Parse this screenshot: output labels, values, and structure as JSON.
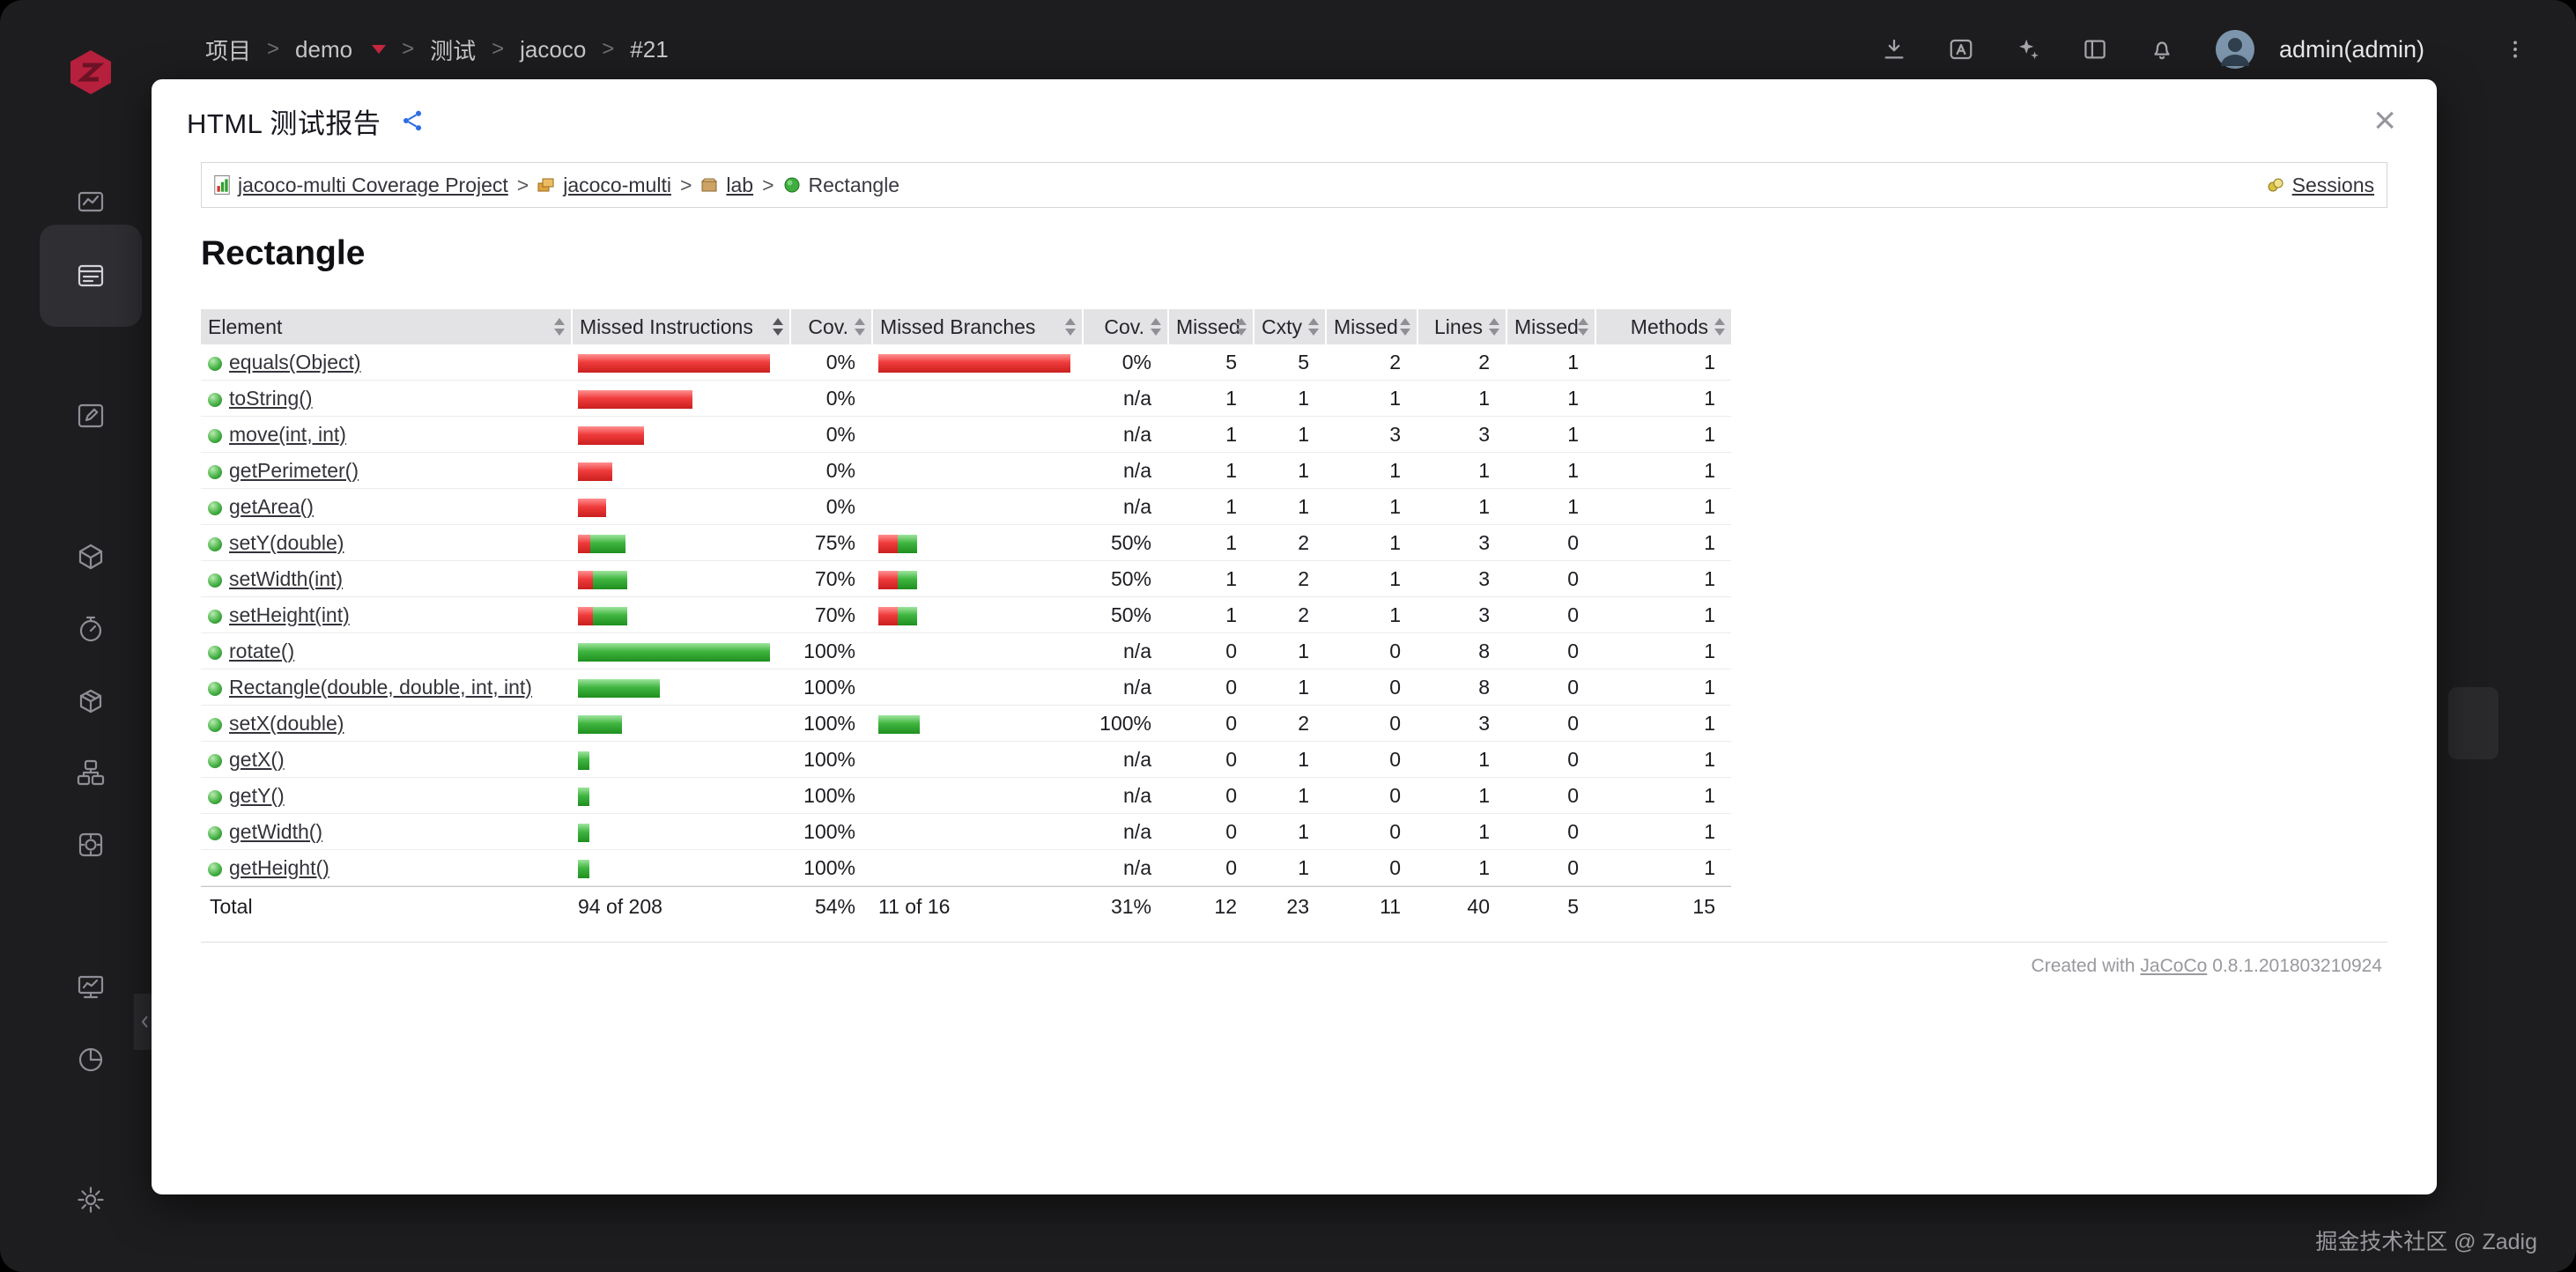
{
  "topbar": {
    "breadcrumb": [
      "项目",
      "demo",
      "测试",
      "jacoco",
      "#21"
    ],
    "separator": ">",
    "user": "admin(admin)",
    "icon_names": [
      "download-icon",
      "language-icon",
      "sparkles-icon",
      "layout-icon",
      "notification-icon",
      "avatar",
      "more-icon"
    ]
  },
  "sidebar": {
    "logo": "zadig-logo",
    "items": [
      {
        "name": "dashboard",
        "active": false
      },
      {
        "name": "projects",
        "active": true
      },
      {
        "name": "compose",
        "active": false
      },
      {
        "name": "builds",
        "active": false
      },
      {
        "name": "tests",
        "active": false
      },
      {
        "name": "delivery",
        "active": false
      },
      {
        "name": "environments",
        "active": false
      },
      {
        "name": "plugins",
        "active": false
      },
      {
        "name": "monitor",
        "active": false
      },
      {
        "name": "insights",
        "active": false
      },
      {
        "name": "settings",
        "active": false
      }
    ]
  },
  "modal": {
    "title": "HTML 测试报告",
    "close_label": "×"
  },
  "report": {
    "breadcrumb": {
      "separator": ">",
      "items": [
        {
          "label": "jacoco-multi Coverage Project",
          "icon": "report-icon"
        },
        {
          "label": "jacoco-multi",
          "icon": "group-icon"
        },
        {
          "label": "lab",
          "icon": "package-icon"
        },
        {
          "label": "Rectangle",
          "icon": "class-icon"
        }
      ],
      "sessions_label": "Sessions"
    },
    "heading": "Rectangle",
    "table": {
      "columns": [
        "Element",
        "Missed Instructions",
        "Cov.",
        "Missed Branches",
        "Cov.",
        "Missed",
        "Cxty",
        "Missed",
        "Lines",
        "Missed",
        "Methods"
      ],
      "rows": [
        {
          "name": "equals(Object)",
          "instr": [
            218,
            0
          ],
          "instr_cov": "0%",
          "branch": [
            218,
            0
          ],
          "branch_cov": "0%",
          "nums": [
            "5",
            "5",
            "2",
            "2",
            "1",
            "1"
          ]
        },
        {
          "name": "toString()",
          "instr": [
            130,
            0
          ],
          "instr_cov": "0%",
          "branch": [
            0,
            0
          ],
          "branch_cov": "n/a",
          "nums": [
            "1",
            "1",
            "1",
            "1",
            "1",
            "1"
          ]
        },
        {
          "name": "move(int, int)",
          "instr": [
            75,
            0
          ],
          "instr_cov": "0%",
          "branch": [
            0,
            0
          ],
          "branch_cov": "n/a",
          "nums": [
            "1",
            "1",
            "3",
            "3",
            "1",
            "1"
          ]
        },
        {
          "name": "getPerimeter()",
          "instr": [
            39,
            0
          ],
          "instr_cov": "0%",
          "branch": [
            0,
            0
          ],
          "branch_cov": "n/a",
          "nums": [
            "1",
            "1",
            "1",
            "1",
            "1",
            "1"
          ]
        },
        {
          "name": "getArea()",
          "instr": [
            32,
            0
          ],
          "instr_cov": "0%",
          "branch": [
            0,
            0
          ],
          "branch_cov": "n/a",
          "nums": [
            "1",
            "1",
            "1",
            "1",
            "1",
            "1"
          ]
        },
        {
          "name": "setY(double)",
          "instr": [
            14,
            40
          ],
          "instr_cov": "75%",
          "branch": [
            22,
            22
          ],
          "branch_cov": "50%",
          "nums": [
            "1",
            "2",
            "1",
            "3",
            "0",
            "1"
          ]
        },
        {
          "name": "setWidth(int)",
          "instr": [
            17,
            39
          ],
          "instr_cov": "70%",
          "branch": [
            22,
            22
          ],
          "branch_cov": "50%",
          "nums": [
            "1",
            "2",
            "1",
            "3",
            "0",
            "1"
          ]
        },
        {
          "name": "setHeight(int)",
          "instr": [
            17,
            39
          ],
          "instr_cov": "70%",
          "branch": [
            22,
            22
          ],
          "branch_cov": "50%",
          "nums": [
            "1",
            "2",
            "1",
            "3",
            "0",
            "1"
          ]
        },
        {
          "name": "rotate()",
          "instr": [
            0,
            218
          ],
          "instr_cov": "100%",
          "branch": [
            0,
            0
          ],
          "branch_cov": "n/a",
          "nums": [
            "0",
            "1",
            "0",
            "8",
            "0",
            "1"
          ]
        },
        {
          "name": "Rectangle(double, double, int, int)",
          "instr": [
            0,
            93
          ],
          "instr_cov": "100%",
          "branch": [
            0,
            0
          ],
          "branch_cov": "n/a",
          "nums": [
            "0",
            "1",
            "0",
            "8",
            "0",
            "1"
          ]
        },
        {
          "name": "setX(double)",
          "instr": [
            0,
            50
          ],
          "instr_cov": "100%",
          "branch": [
            0,
            47
          ],
          "branch_cov": "100%",
          "nums": [
            "0",
            "2",
            "0",
            "3",
            "0",
            "1"
          ]
        },
        {
          "name": "getX()",
          "instr": [
            0,
            13
          ],
          "instr_cov": "100%",
          "branch": [
            0,
            0
          ],
          "branch_cov": "n/a",
          "nums": [
            "0",
            "1",
            "0",
            "1",
            "0",
            "1"
          ]
        },
        {
          "name": "getY()",
          "instr": [
            0,
            13
          ],
          "instr_cov": "100%",
          "branch": [
            0,
            0
          ],
          "branch_cov": "n/a",
          "nums": [
            "0",
            "1",
            "0",
            "1",
            "0",
            "1"
          ]
        },
        {
          "name": "getWidth()",
          "instr": [
            0,
            13
          ],
          "instr_cov": "100%",
          "branch": [
            0,
            0
          ],
          "branch_cov": "n/a",
          "nums": [
            "0",
            "1",
            "0",
            "1",
            "0",
            "1"
          ]
        },
        {
          "name": "getHeight()",
          "instr": [
            0,
            13
          ],
          "instr_cov": "100%",
          "branch": [
            0,
            0
          ],
          "branch_cov": "n/a",
          "nums": [
            "0",
            "1",
            "0",
            "1",
            "0",
            "1"
          ]
        }
      ],
      "total": {
        "label": "Total",
        "instructions": "94 of 208",
        "instr_cov": "54%",
        "branches": "11 of 16",
        "branch_cov": "31%",
        "nums": [
          "12",
          "23",
          "11",
          "40",
          "5",
          "15"
        ]
      }
    },
    "footer": {
      "prefix": "Created with",
      "link_label": "JaCoCo",
      "version": "0.8.1.201803210924"
    }
  },
  "watermark": "掘金技术社区 @ Zadig",
  "colors": {
    "brand_red": "#c5273f",
    "accent_blue": "#2e6de4",
    "bar_red": "#e03030",
    "bar_green": "#3fb53f",
    "link": "#33333b",
    "modal_bg": "#ffffff",
    "app_bg": "#1d1d1f"
  }
}
